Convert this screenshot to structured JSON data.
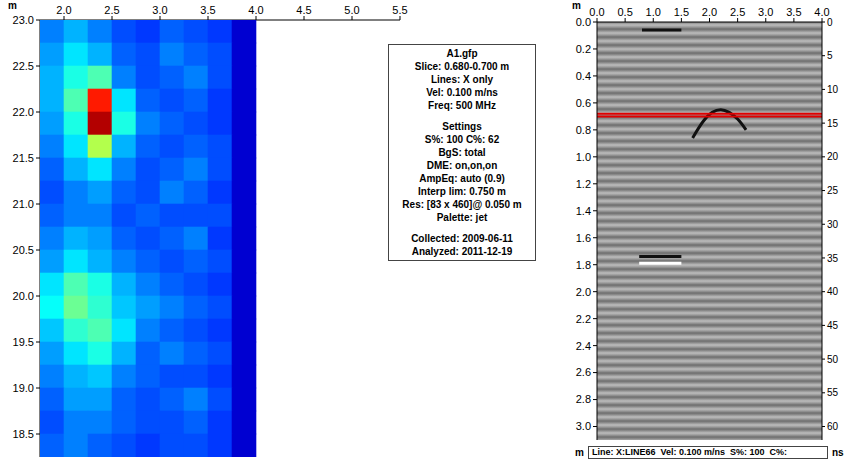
{
  "chart_data": [
    {
      "type": "heatmap",
      "xlabel": "m",
      "x": [
        1.875,
        2.125,
        2.375,
        2.625,
        2.875,
        3.125,
        3.375,
        3.625,
        3.875
      ],
      "y": [
        22.875,
        22.625,
        22.375,
        22.125,
        21.875,
        21.625,
        21.375,
        21.125,
        20.875,
        20.625,
        20.375,
        20.125,
        19.875,
        19.625,
        19.375,
        19.125,
        18.875,
        18.625,
        18.375
      ],
      "values": [
        [
          25,
          30,
          25,
          20,
          18,
          22,
          20,
          18,
          8
        ],
        [
          28,
          35,
          30,
          22,
          20,
          25,
          22,
          20,
          8
        ],
        [
          30,
          40,
          45,
          25,
          20,
          22,
          25,
          20,
          8
        ],
        [
          30,
          45,
          85,
          35,
          22,
          20,
          22,
          18,
          8
        ],
        [
          28,
          40,
          95,
          40,
          25,
          22,
          20,
          18,
          8
        ],
        [
          25,
          35,
          55,
          30,
          22,
          20,
          22,
          20,
          8
        ],
        [
          22,
          30,
          35,
          25,
          20,
          22,
          25,
          20,
          8
        ],
        [
          20,
          25,
          28,
          22,
          20,
          25,
          22,
          18,
          8
        ],
        [
          22,
          25,
          25,
          20,
          22,
          20,
          20,
          20,
          8
        ],
        [
          25,
          30,
          28,
          22,
          20,
          22,
          25,
          18,
          8
        ],
        [
          28,
          35,
          30,
          25,
          22,
          20,
          22,
          20,
          8
        ],
        [
          35,
          45,
          40,
          30,
          25,
          22,
          20,
          18,
          8
        ],
        [
          38,
          48,
          42,
          32,
          28,
          25,
          22,
          20,
          8
        ],
        [
          32,
          42,
          45,
          35,
          25,
          22,
          20,
          18,
          8
        ],
        [
          28,
          35,
          40,
          30,
          22,
          25,
          22,
          20,
          8
        ],
        [
          25,
          30,
          32,
          25,
          22,
          20,
          20,
          18,
          8
        ],
        [
          22,
          28,
          28,
          22,
          20,
          22,
          25,
          20,
          8
        ],
        [
          20,
          25,
          25,
          22,
          20,
          20,
          22,
          18,
          8
        ],
        [
          22,
          25,
          22,
          20,
          18,
          20,
          20,
          18,
          8
        ]
      ],
      "color_range": [
        0,
        100
      ],
      "xlim": [
        1.75,
        5.5
      ],
      "xticks": [
        {
          "value": 2,
          "label": "2.0"
        },
        2.5,
        {
          "value": 3,
          "label": "3.0"
        },
        3.5,
        {
          "value": 4,
          "label": "4.0"
        },
        4.5,
        {
          "value": 5,
          "label": "5.0"
        },
        5.5
      ],
      "ylim": [
        18.25,
        23
      ],
      "yticks": [
        18.5,
        {
          "value": 19,
          "label": "19.0"
        },
        19.5,
        {
          "value": 20,
          "label": "20.0"
        },
        20.5,
        {
          "value": 21,
          "label": "21.0"
        },
        21.5,
        {
          "value": 22,
          "label": "22.0"
        },
        22.5,
        {
          "value": 23,
          "label": "23.0"
        }
      ],
      "survey_lines": [
        22.5,
        22.0,
        21.5,
        21.0,
        20.5,
        20.0,
        19.5,
        19.0,
        18.5
      ],
      "current_line": 22.0
    },
    {
      "type": "line",
      "xlabel": "m",
      "ylabel": "m",
      "y2label": "ns",
      "series": [
        {
          "color": "#111111",
          "x": [
            0.8,
            1.5
          ],
          "values": [
            0.06,
            0.06
          ]
        },
        {
          "color": "#111111",
          "x": [
            1.7,
            1.9,
            2.05,
            2.2,
            2.35,
            2.5,
            2.65
          ],
          "values": [
            0.86,
            0.73,
            0.67,
            0.65,
            0.67,
            0.72,
            0.8
          ]
        },
        {
          "color": "#111111",
          "x": [
            0.75,
            1.5
          ],
          "values": [
            1.74,
            1.74
          ]
        },
        {
          "color": "#ffffff",
          "x": [
            0.75,
            1.5
          ],
          "values": [
            1.79,
            1.79
          ]
        }
      ],
      "slice_range": [
        0.68,
        0.7
      ],
      "xlim": [
        0,
        4
      ],
      "xticks": [
        {
          "value": 0,
          "label": "0.0"
        },
        0.5,
        {
          "value": 1,
          "label": "1.0"
        },
        1.5,
        {
          "value": 2,
          "label": "2.0"
        },
        2.5,
        {
          "value": 3,
          "label": "3.0"
        },
        3.5,
        {
          "value": 4,
          "label": "4.0"
        }
      ],
      "ylim": [
        0,
        3.1
      ],
      "yticks": [
        {
          "value": 0,
          "label": "0.0"
        },
        0.2,
        0.4,
        0.6,
        0.8,
        {
          "value": 1,
          "label": "1.0"
        },
        1.2,
        1.4,
        1.6,
        1.8,
        {
          "value": 2,
          "label": "2.0"
        },
        2.2,
        2.4,
        2.6,
        2.8,
        {
          "value": 3,
          "label": "3.0"
        }
      ],
      "y2lim": [
        0,
        62
      ],
      "y2ticks": [
        0,
        5,
        10,
        15,
        20,
        25,
        30,
        35,
        40,
        45,
        50,
        55,
        60
      ]
    }
  ],
  "info_box": {
    "title": "A1.gfp",
    "lines": [
      "Slice: 0.680-0.700 m",
      "Lines: X only",
      "Vel: 0.100 m/ns",
      "Freq: 500 MHz"
    ],
    "settings_title": "Settings",
    "settings": [
      "S%: 100  C%: 62",
      "BgS: total",
      "DME: on,on,on",
      "AmpEq: auto (0.9)",
      "Interp lim: 0.750 m",
      "Res: [83 x 460]@ 0.050 m",
      "Palette: jet"
    ],
    "dates": [
      "Collected: 2009-06-11",
      "Analyzed: 2011-12-19"
    ]
  },
  "status_bar": "Line: X:LINE66  Vel: 0.100 m/ns  S%: 100  C%:"
}
